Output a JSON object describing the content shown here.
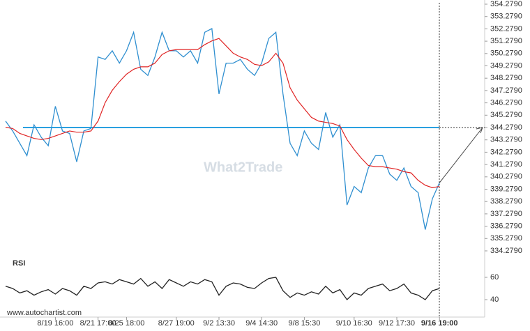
{
  "chart_data": [
    {
      "type": "line",
      "categories": [
        null,
        null,
        null,
        null,
        null,
        null,
        null,
        "8/19 16:00",
        null,
        null,
        null,
        null,
        null,
        "8/21 17:00",
        null,
        null,
        null,
        "8/25 18:00",
        null,
        null,
        null,
        null,
        null,
        null,
        "8/27 19:00",
        null,
        null,
        null,
        null,
        null,
        "9/2 13:30",
        null,
        null,
        null,
        null,
        null,
        "9/4 14:30",
        null,
        null,
        null,
        null,
        null,
        "9/8 15:30",
        null,
        null,
        null,
        null,
        null,
        null,
        "9/10 16:30",
        null,
        null,
        null,
        null,
        null,
        "9/12 17:30",
        null,
        null,
        null,
        null,
        null,
        "9/16 19:00"
      ],
      "series": [
        {
          "name": "Price",
          "color": "#2f8fd0",
          "values": [
            344.8,
            344.0,
            343.0,
            342.0,
            344.5,
            343.5,
            342.8,
            346.0,
            344.0,
            343.8,
            341.5,
            344.0,
            344.2,
            350.0,
            349.8,
            350.5,
            349.5,
            350.5,
            352.0,
            349.0,
            348.5,
            350.0,
            352.0,
            350.5,
            350.5,
            350.0,
            350.5,
            349.5,
            352.0,
            352.3,
            347.0,
            349.5,
            349.5,
            349.8,
            349.0,
            348.5,
            349.5,
            351.5,
            352.0,
            347.0,
            343.0,
            342.0,
            344.0,
            343.0,
            342.5,
            345.5,
            343.5,
            344.5,
            338.0,
            339.5,
            339.0,
            341.0,
            342.0,
            342.0,
            340.5,
            340.0,
            341.0,
            339.5,
            339.0,
            336.0,
            338.5,
            339.8
          ]
        },
        {
          "name": "MA",
          "color": "#e02424",
          "values": [
            344.3,
            344.2,
            343.8,
            343.6,
            343.4,
            343.3,
            343.4,
            343.6,
            343.8,
            344.0,
            343.9,
            343.9,
            344.0,
            344.8,
            346.3,
            347.3,
            348.0,
            348.6,
            349.0,
            349.2,
            349.2,
            349.5,
            350.2,
            350.5,
            350.6,
            350.6,
            350.6,
            350.6,
            351.0,
            351.3,
            351.5,
            350.9,
            350.3,
            350.0,
            349.8,
            349.4,
            349.3,
            349.6,
            350.3,
            349.5,
            347.5,
            346.5,
            345.8,
            345.1,
            344.8,
            344.7,
            344.6,
            344.4,
            343.3,
            342.5,
            341.8,
            341.2,
            341.1,
            341.1,
            341.0,
            340.9,
            340.7,
            340.6,
            340.0,
            339.6,
            339.4,
            339.5
          ]
        }
      ],
      "support_level": 344.279,
      "support_color": "#2aa0e0",
      "ylim": [
        334.279,
        354.279
      ],
      "yticks": [
        {
          "value": 354.279,
          "label": "354.2790"
        },
        {
          "value": 353.279,
          "label": "353.2790"
        },
        {
          "value": 352.279,
          "label": "352.2790"
        },
        {
          "value": 351.279,
          "label": "351.2790"
        },
        {
          "value": 350.279,
          "label": "350.2790"
        },
        {
          "value": 349.279,
          "label": "349.2790"
        },
        {
          "value": 348.279,
          "label": "348.2790"
        },
        {
          "value": 347.279,
          "label": "347.2790"
        },
        {
          "value": 346.279,
          "label": "346.2790"
        },
        {
          "value": 345.279,
          "label": "345.2790"
        },
        {
          "value": 344.279,
          "label": "344.2790"
        },
        {
          "value": 343.279,
          "label": "343.2790"
        },
        {
          "value": 342.279,
          "label": "342.2790"
        },
        {
          "value": 341.279,
          "label": "341.2790"
        },
        {
          "value": 340.279,
          "label": "340.2790"
        },
        {
          "value": 339.279,
          "label": "339.2790"
        },
        {
          "value": 338.279,
          "label": "338.2790"
        },
        {
          "value": 337.279,
          "label": "337.2790"
        },
        {
          "value": 336.279,
          "label": "336.2790"
        },
        {
          "value": 335.279,
          "label": "335.2790"
        },
        {
          "value": 334.279,
          "label": "334.2790"
        }
      ]
    },
    {
      "type": "line",
      "title": "RSI",
      "series": [
        {
          "name": "RSI",
          "color": "#222222",
          "values": [
            52,
            50,
            46,
            48,
            44,
            47,
            49,
            45,
            50,
            48,
            44,
            52,
            50,
            55,
            56,
            54,
            58,
            56,
            54,
            59,
            52,
            56,
            50,
            58,
            55,
            52,
            56,
            54,
            58,
            56,
            44,
            52,
            55,
            54,
            51,
            50,
            55,
            59,
            60,
            48,
            42,
            46,
            44,
            47,
            45,
            52,
            46,
            49,
            40,
            46,
            44,
            50,
            52,
            54,
            48,
            50,
            54,
            46,
            44,
            40,
            48,
            50
          ]
        }
      ],
      "ylim": [
        30,
        70
      ],
      "yticks": [
        60,
        40
      ]
    }
  ],
  "watermark": "What2Trade",
  "source": "www.autochartist.com"
}
